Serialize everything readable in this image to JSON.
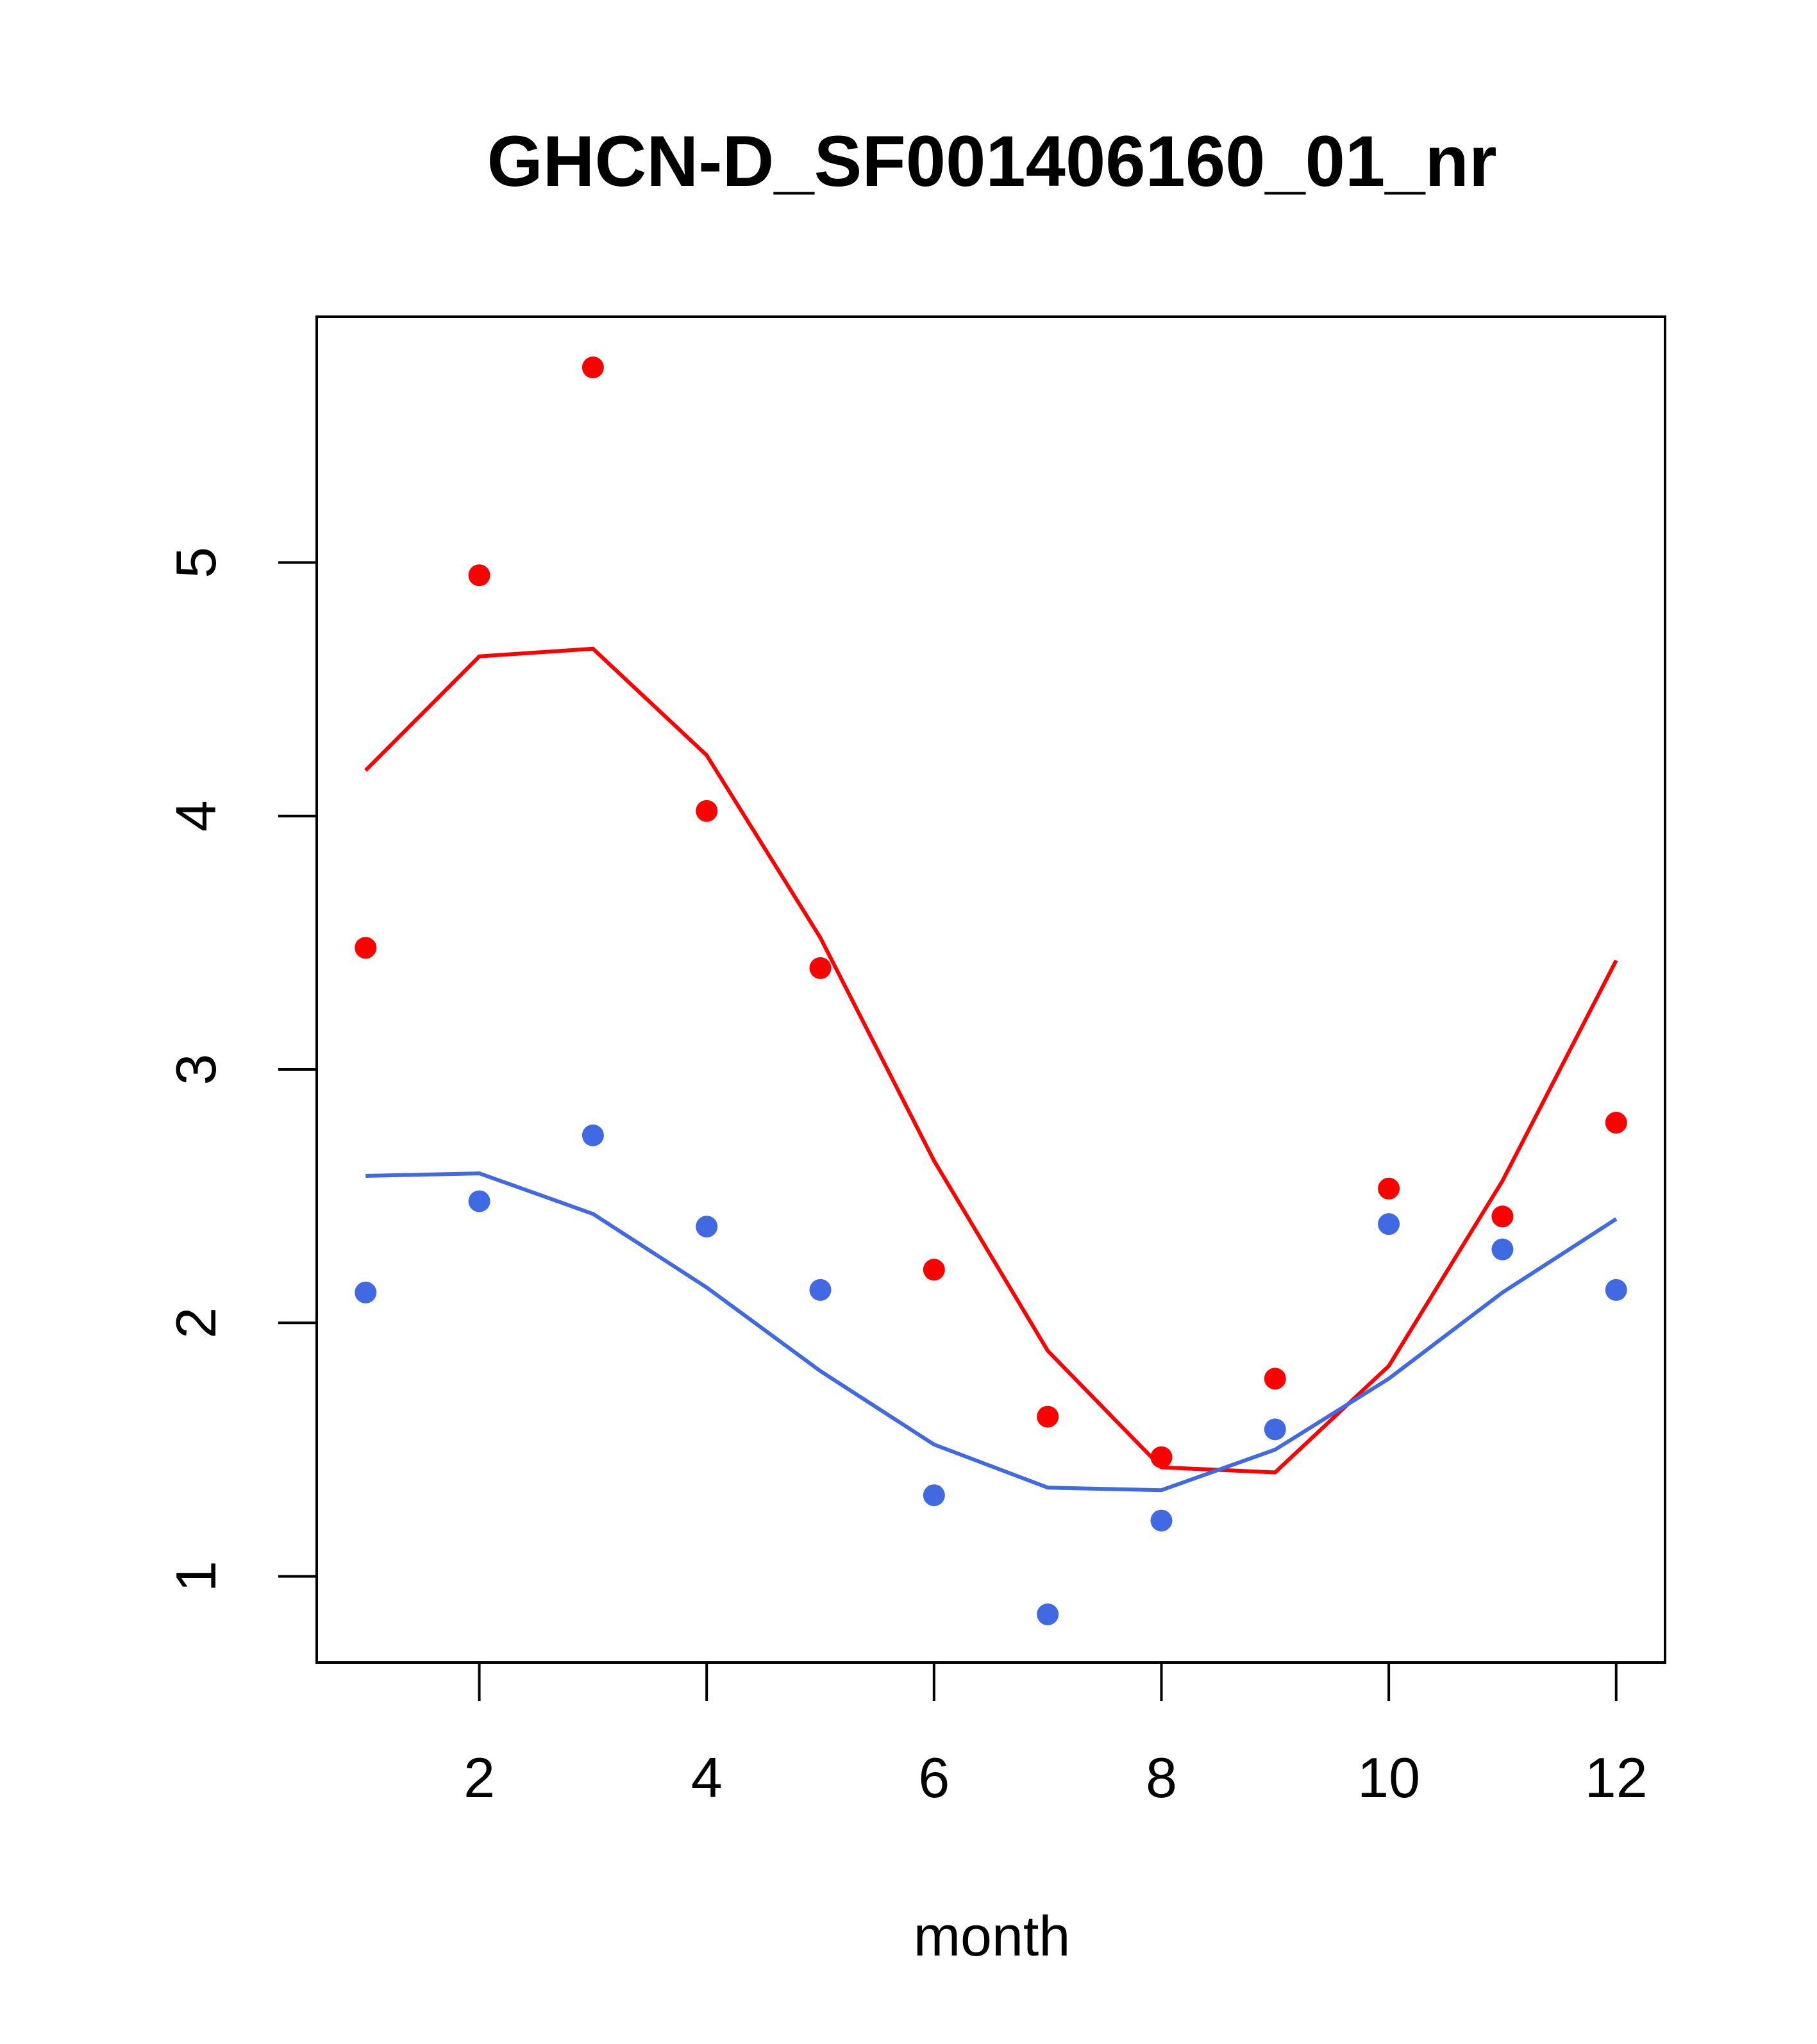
{
  "chart_data": {
    "type": "scatter",
    "title": "GHCN-D_SF001406160_01_nr",
    "xlabel": "month",
    "ylabel": "",
    "xlim": [
      0.57,
      12.43
    ],
    "ylim": [
      0.66,
      5.97
    ],
    "xticks": [
      2,
      4,
      6,
      8,
      10,
      12
    ],
    "yticks": [
      1,
      2,
      3,
      4,
      5
    ],
    "grid": false,
    "legend": "none",
    "series": [
      {
        "color": "#ff0000",
        "points": {
          "x": [
            1,
            2,
            3,
            4,
            5,
            6,
            7,
            8,
            9,
            10,
            11,
            12
          ],
          "y": [
            3.48,
            4.95,
            5.77,
            4.02,
            3.4,
            2.21,
            1.63,
            1.47,
            1.78,
            2.53,
            2.42,
            2.79
          ]
        },
        "line": {
          "x": [
            1,
            2,
            3,
            4,
            5,
            6,
            7,
            8,
            9,
            10,
            11,
            12
          ],
          "y": [
            4.18,
            4.63,
            4.66,
            4.24,
            3.52,
            2.64,
            1.89,
            1.43,
            1.41,
            1.83,
            2.56,
            3.43
          ]
        }
      },
      {
        "color": "#4169e1",
        "points": {
          "x": [
            1,
            2,
            3,
            4,
            5,
            6,
            7,
            8,
            9,
            10,
            11,
            12
          ],
          "y": [
            2.12,
            2.48,
            2.74,
            2.38,
            2.13,
            1.32,
            0.85,
            1.22,
            1.58,
            2.39,
            2.29,
            2.13
          ]
        },
        "line": {
          "x": [
            1,
            2,
            3,
            4,
            5,
            6,
            7,
            8,
            9,
            10,
            11,
            12
          ],
          "y": [
            2.58,
            2.59,
            2.43,
            2.14,
            1.81,
            1.52,
            1.35,
            1.34,
            1.5,
            1.78,
            2.12,
            2.41
          ]
        }
      }
    ]
  }
}
